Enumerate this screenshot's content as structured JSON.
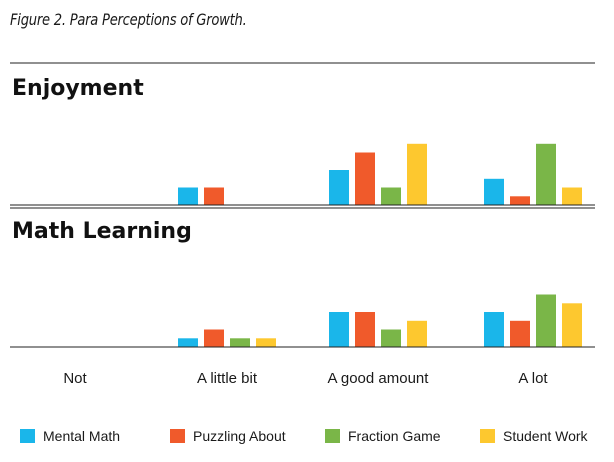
{
  "caption": "Figure 2. Para Perceptions of Growth.",
  "chart_data": {
    "type": "bar",
    "categories": [
      "Not",
      "A little bit",
      "A good amount",
      "A lot"
    ],
    "colors": [
      "#1ab6ea",
      "#f05a2b",
      "#7ab648",
      "#fdc82f"
    ],
    "panels": [
      {
        "title": "Enjoyment",
        "ylim": [
          0,
          4
        ],
        "series": [
          {
            "name": "Mental Math",
            "values": [
              0,
              1,
              2,
              1.5
            ]
          },
          {
            "name": "Puzzling About",
            "values": [
              0,
              1,
              3,
              0.5
            ]
          },
          {
            "name": "Fraction Game",
            "values": [
              0,
              0,
              1,
              3.5
            ]
          },
          {
            "name": "Student Work",
            "values": [
              0,
              0,
              3.5,
              1
            ]
          }
        ]
      },
      {
        "title": "Math Learning",
        "ylim": [
          0,
          4
        ],
        "series": [
          {
            "name": "Mental Math",
            "values": [
              0,
              0.5,
              2,
              2
            ]
          },
          {
            "name": "Puzzling About",
            "values": [
              0,
              1,
              2,
              1.5
            ]
          },
          {
            "name": "Fraction Game",
            "values": [
              0,
              0.5,
              1,
              3
            ]
          },
          {
            "name": "Student Work",
            "values": [
              0,
              0.5,
              1.5,
              2.5
            ]
          }
        ]
      }
    ],
    "legend_position": "bottom"
  }
}
